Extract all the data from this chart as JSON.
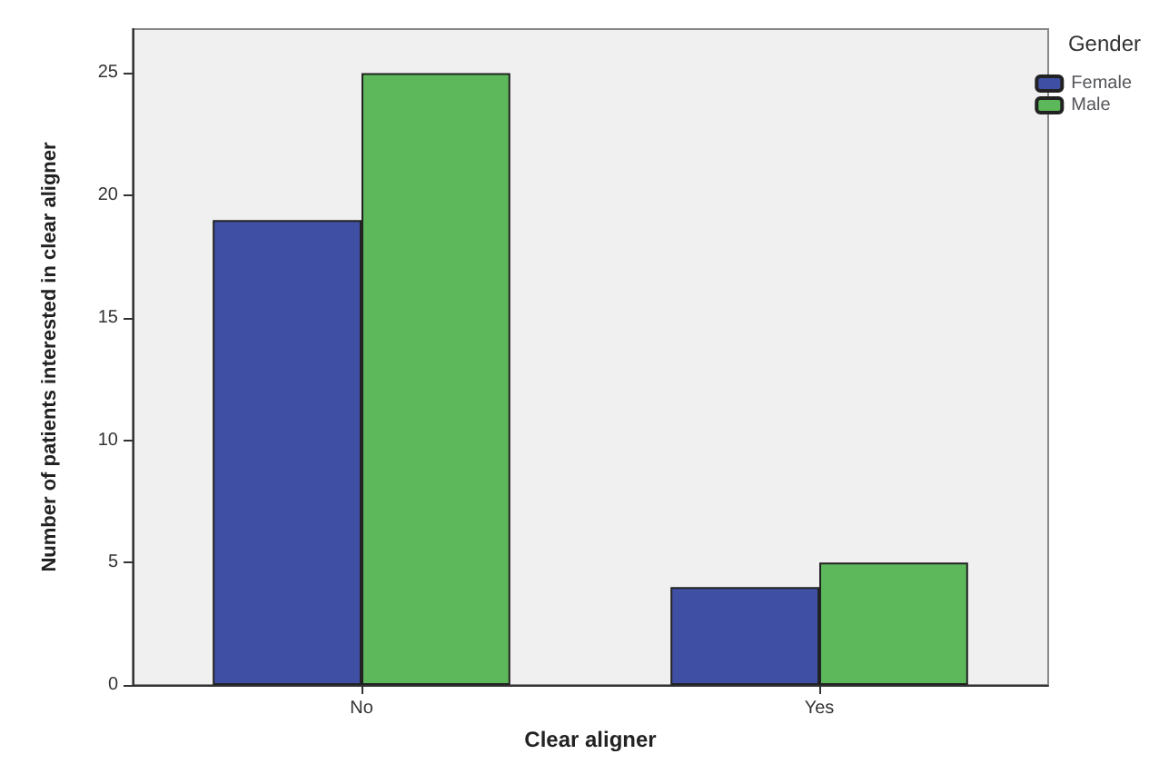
{
  "chart_data": {
    "type": "bar",
    "xlabel": "Clear aligner",
    "ylabel": "Number of patients interested in clear aligner",
    "legend_title": "Gender",
    "categories": [
      "No",
      "Yes"
    ],
    "series": [
      {
        "name": "Female",
        "color": "#3f4fa3",
        "values": [
          19,
          4
        ]
      },
      {
        "name": "Male",
        "color": "#5cb85a",
        "values": [
          25,
          5
        ]
      }
    ],
    "ylim": [
      0,
      26.8
    ],
    "yticks": [
      0,
      5,
      10,
      15,
      20,
      25
    ],
    "grid": false,
    "legend": "top right"
  }
}
